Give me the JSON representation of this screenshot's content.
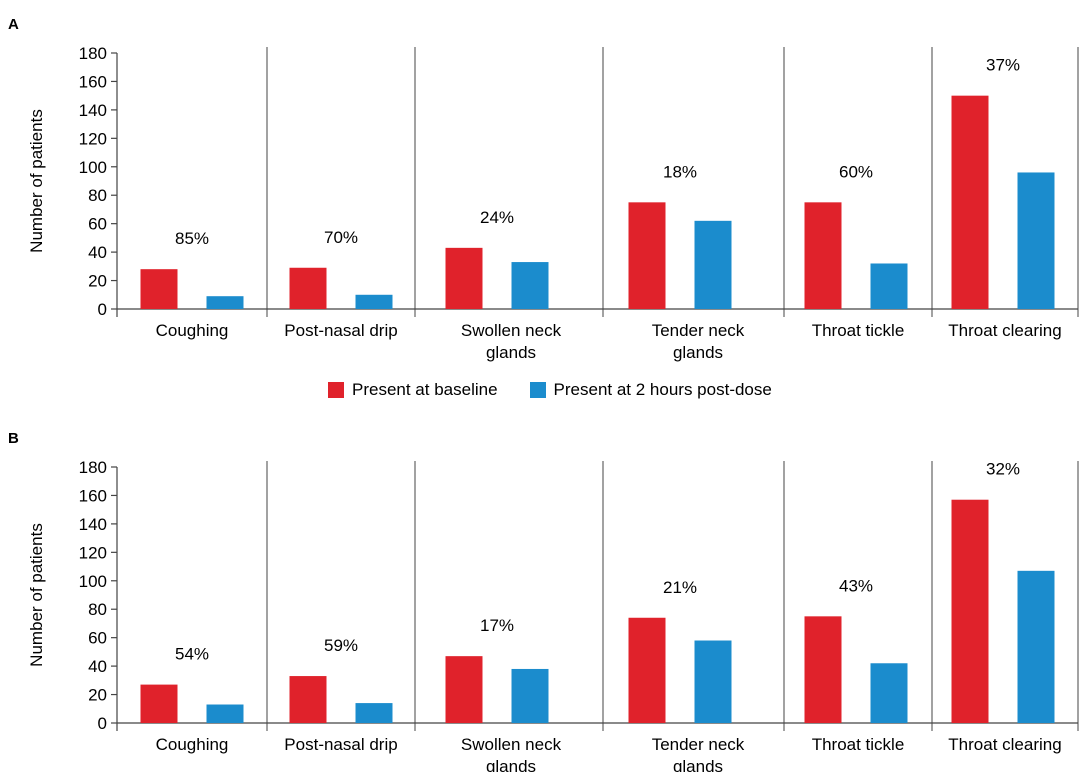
{
  "colors": {
    "baseline": "#e0222b",
    "post_dose": "#1b8ccd",
    "axis": "#444444"
  },
  "legend": {
    "baseline_label": "Present at baseline",
    "post_dose_label": "Present at 2 hours post-dose"
  },
  "chart_data": [
    {
      "type": "bar",
      "panel": "A",
      "ylabel": "Number of patients",
      "ylim": [
        0,
        180
      ],
      "yticks": [
        0,
        20,
        40,
        60,
        80,
        100,
        120,
        140,
        160,
        180
      ],
      "categories": [
        "Coughing",
        "Post-nasal drip",
        "Swollen neck glands",
        "Tender neck glands",
        "Throat tickle",
        "Throat clearing"
      ],
      "category_lines": [
        [
          "Coughing"
        ],
        [
          "Post-nasal drip"
        ],
        [
          "Swollen neck",
          "glands"
        ],
        [
          "Tender neck",
          "glands"
        ],
        [
          "Throat tickle"
        ],
        [
          "Throat clearing"
        ]
      ],
      "series": [
        {
          "name": "Present at baseline",
          "values": [
            28,
            29,
            43,
            75,
            75,
            150
          ]
        },
        {
          "name": "Present at 2 hours post-dose",
          "values": [
            9,
            10,
            33,
            62,
            32,
            96
          ]
        }
      ],
      "annotations": [
        "85%",
        "70%",
        "24%",
        "18%",
        "60%",
        "37%"
      ]
    },
    {
      "type": "bar",
      "panel": "B",
      "ylabel": "Number of patients",
      "ylim": [
        0,
        180
      ],
      "yticks": [
        0,
        20,
        40,
        60,
        80,
        100,
        120,
        140,
        160,
        180
      ],
      "categories": [
        "Coughing",
        "Post-nasal drip",
        "Swollen neck glands",
        "Tender neck glands",
        "Throat tickle",
        "Throat clearing"
      ],
      "category_lines": [
        [
          "Coughing"
        ],
        [
          "Post-nasal drip"
        ],
        [
          "Swollen neck",
          "glands"
        ],
        [
          "Tender neck",
          "glands"
        ],
        [
          "Throat tickle"
        ],
        [
          "Throat clearing"
        ]
      ],
      "series": [
        {
          "name": "Present at baseline",
          "values": [
            27,
            33,
            47,
            74,
            75,
            157
          ]
        },
        {
          "name": "Present at 2 hours post-dose",
          "values": [
            13,
            14,
            38,
            58,
            42,
            107
          ]
        }
      ],
      "annotations": [
        "54%",
        "59%",
        "17%",
        "21%",
        "43%",
        "32%"
      ]
    }
  ]
}
